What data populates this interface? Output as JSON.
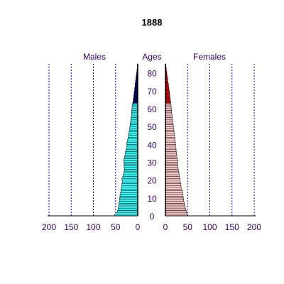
{
  "chart_data": {
    "type": "population-pyramid",
    "title": "1888",
    "left_label": "Males",
    "center_label": "Ages",
    "right_label": "Females",
    "age_ticks": [
      "80",
      "70",
      "60",
      "50",
      "40",
      "30",
      "20",
      "10",
      "0"
    ],
    "x_ticks": [
      "200",
      "150",
      "100",
      "50",
      "0"
    ],
    "x_range": [
      0,
      200
    ],
    "age_range": [
      0,
      85
    ],
    "grid": true,
    "colors": {
      "male_young": "#33ffff",
      "male_old": "#000066",
      "female_young": "#ffcccc",
      "female_old": "#cc0000",
      "grid": "#0000cc",
      "text": "#330066"
    },
    "old_age_threshold": 63,
    "ages": [
      0,
      1,
      2,
      3,
      4,
      5,
      6,
      7,
      8,
      9,
      10,
      11,
      12,
      13,
      14,
      15,
      16,
      17,
      18,
      19,
      20,
      21,
      22,
      23,
      24,
      25,
      26,
      27,
      28,
      29,
      30,
      31,
      32,
      33,
      34,
      35,
      36,
      37,
      38,
      39,
      40,
      41,
      42,
      43,
      44,
      45,
      46,
      47,
      48,
      49,
      50,
      51,
      52,
      53,
      54,
      55,
      56,
      57,
      58,
      59,
      60,
      61,
      62,
      63,
      64,
      65,
      66,
      67,
      68,
      69,
      70,
      71,
      72,
      73,
      74,
      75,
      76,
      77,
      78,
      79,
      80,
      81,
      82,
      83,
      84
    ],
    "males": [
      52,
      47,
      46,
      44,
      44,
      43,
      42,
      42,
      41,
      41,
      40,
      40,
      39,
      38,
      38,
      37,
      36,
      36,
      35,
      34,
      36,
      34,
      33,
      32,
      31,
      30,
      30,
      31,
      31,
      30,
      32,
      31,
      30,
      29,
      28,
      28,
      27,
      26,
      25,
      24,
      25,
      24,
      23,
      22,
      21,
      20,
      20,
      19,
      18,
      18,
      17,
      17,
      16,
      16,
      15,
      15,
      14,
      14,
      14,
      13,
      13,
      12,
      12,
      11,
      10,
      10,
      9,
      9,
      8,
      8,
      7,
      7,
      6,
      6,
      5,
      5,
      4,
      4,
      3,
      3,
      2,
      2,
      1,
      1,
      1
    ],
    "females": [
      49,
      48,
      47,
      46,
      45,
      44,
      43,
      42,
      41,
      41,
      40,
      39,
      39,
      38,
      37,
      36,
      35,
      35,
      34,
      33,
      33,
      32,
      31,
      31,
      30,
      29,
      29,
      28,
      28,
      27,
      28,
      27,
      26,
      26,
      25,
      25,
      24,
      24,
      23,
      23,
      23,
      22,
      22,
      21,
      21,
      20,
      20,
      19,
      19,
      18,
      18,
      17,
      17,
      16,
      16,
      15,
      15,
      14,
      14,
      14,
      13,
      13,
      12,
      12,
      11,
      11,
      10,
      10,
      9,
      9,
      8,
      8,
      7,
      7,
      6,
      5,
      5,
      4,
      4,
      3,
      3,
      2,
      2,
      1,
      1
    ]
  }
}
